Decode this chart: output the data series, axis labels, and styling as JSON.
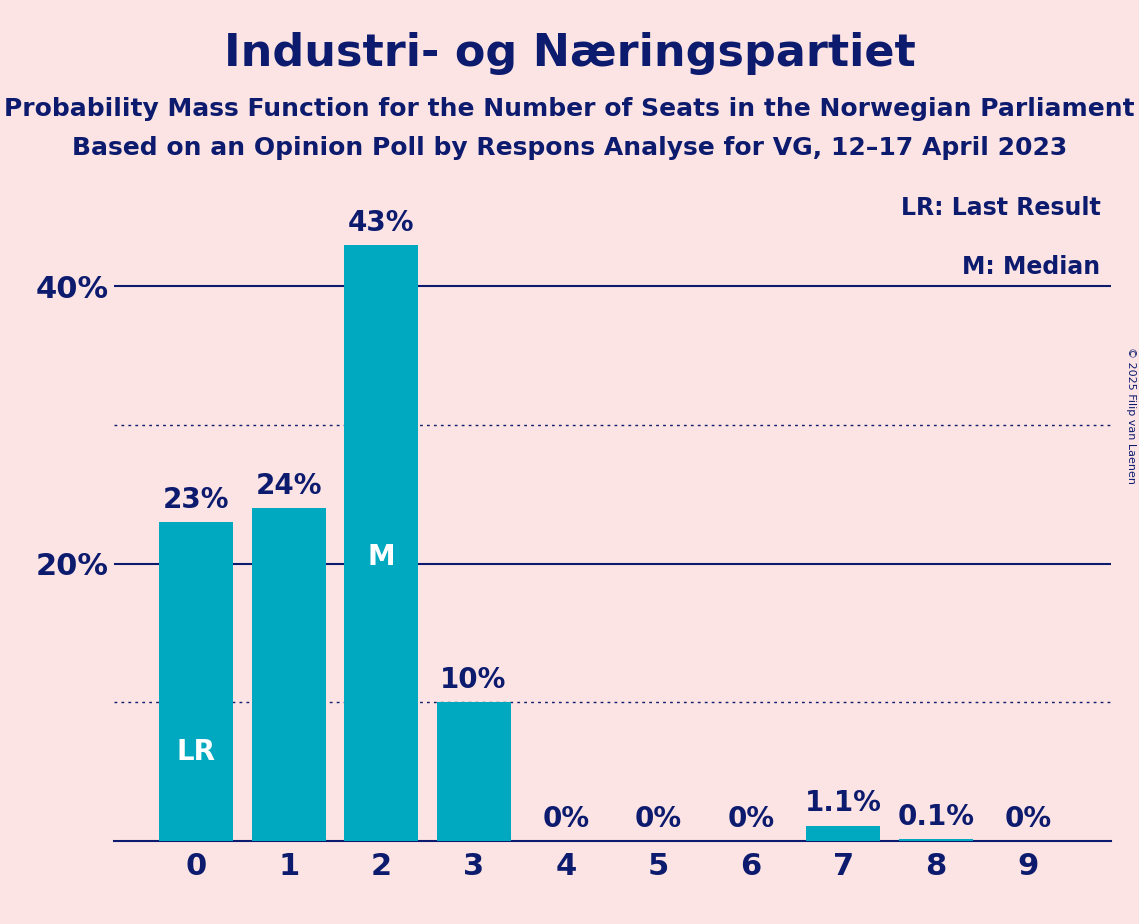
{
  "title": "Industri- og Næringspartiet",
  "subtitle1": "Probability Mass Function for the Number of Seats in the Norwegian Parliament",
  "subtitle2": "Based on an Opinion Poll by Respons Analyse for VG, 12–17 April 2023",
  "copyright": "© 2025 Filip van Laenen",
  "categories": [
    0,
    1,
    2,
    3,
    4,
    5,
    6,
    7,
    8,
    9
  ],
  "values": [
    23,
    24,
    43,
    10,
    0,
    0,
    0,
    1.1,
    0.1,
    0
  ],
  "labels": [
    "23%",
    "24%",
    "43%",
    "10%",
    "0%",
    "0%",
    "0%",
    "1.1%",
    "0.1%",
    "0%"
  ],
  "bar_color": "#00a9c0",
  "background_color": "#fce4e4",
  "text_color": "#0d1b6e",
  "title_fontsize": 32,
  "subtitle_fontsize": 18,
  "axis_tick_fontsize": 22,
  "bar_label_fontsize": 20,
  "bar_label_inside_color": "#ffffff",
  "bar_label_outside_color": "#0d1b6e",
  "lr_bar_index": 0,
  "median_bar_index": 2,
  "yticks": [
    20,
    40
  ],
  "ytick_labels": [
    "20%",
    "40%"
  ],
  "ylim": [
    0,
    47
  ],
  "dotted_lines": [
    10,
    30
  ],
  "solid_lines": [
    20,
    40
  ],
  "legend_lr": "LR: Last Result",
  "legend_m": "M: Median",
  "legend_fontsize": 17,
  "lr_label_fontsize": 20,
  "m_label_fontsize": 20
}
